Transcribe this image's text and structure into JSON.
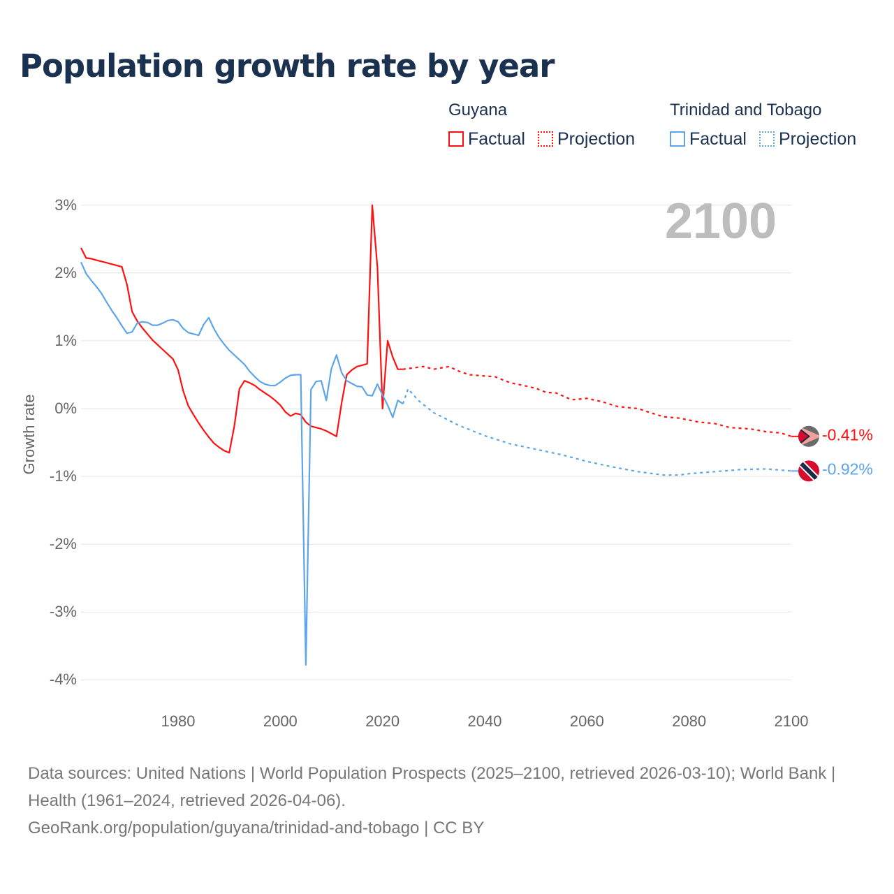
{
  "title": "Population growth rate by year",
  "legend": {
    "groups": [
      {
        "name": "Guyana",
        "factual": "Factual",
        "projection": "Projection",
        "color": "#ff1010"
      },
      {
        "name": "Trinidad and Tobago",
        "factual": "Factual",
        "projection": "Projection",
        "color": "#5da5e8"
      }
    ]
  },
  "current_year": "2100",
  "end_labels": {
    "guyana": "-0.41%",
    "tt": "-0.92%"
  },
  "footer": {
    "line1": "Data sources: United Nations | World Population Prospects (2025–2100, retrieved 2026-03-10); World Bank | Health (1961–2024, retrieved 2026-04-06).",
    "line2": "GeoRank.org/population/guyana/trinidad-and-tobago | CC BY"
  },
  "chart_data": {
    "type": "line",
    "title": "Population growth rate by year",
    "xlabel": "",
    "ylabel": "Growth rate",
    "xlim": [
      1961,
      2100
    ],
    "ylim": [
      -4,
      3
    ],
    "xticks": [
      "1980",
      "2000",
      "2020",
      "2040",
      "2060",
      "2080",
      "2100"
    ],
    "yticks": [
      "3%",
      "2%",
      "1%",
      "0%",
      "-1%",
      "-2%",
      "-3%",
      "-4%"
    ],
    "ytick_values": [
      3,
      2,
      1,
      0,
      -1,
      -2,
      -3,
      -4
    ],
    "xtick_values": [
      1980,
      2000,
      2020,
      2040,
      2060,
      2080,
      2100
    ],
    "grid": true,
    "legend_position": "top-right",
    "series": [
      {
        "name": "Guyana Factual",
        "color": "#ff1010",
        "style": "solid",
        "x": [
          1961,
          1962,
          1963,
          1964,
          1965,
          1966,
          1967,
          1968,
          1969,
          1970,
          1971,
          1972,
          1973,
          1974,
          1975,
          1976,
          1977,
          1978,
          1979,
          1980,
          1981,
          1982,
          1983,
          1984,
          1985,
          1986,
          1987,
          1988,
          1989,
          1990,
          1991,
          1992,
          1993,
          1994,
          1995,
          1996,
          1997,
          1998,
          1999,
          2000,
          2001,
          2002,
          2003,
          2004,
          2005,
          2006,
          2007,
          2008,
          2009,
          2010,
          2011,
          2012,
          2013,
          2014,
          2015,
          2016,
          2017,
          2018,
          2019,
          2020,
          2021,
          2022,
          2023,
          2024
        ],
        "y": [
          2.37,
          2.22,
          2.21,
          2.19,
          2.17,
          2.15,
          2.13,
          2.11,
          2.09,
          1.83,
          1.43,
          1.29,
          1.19,
          1.1,
          1.01,
          0.94,
          0.87,
          0.8,
          0.73,
          0.57,
          0.26,
          0.04,
          -0.09,
          -0.21,
          -0.32,
          -0.42,
          -0.51,
          -0.57,
          -0.62,
          -0.65,
          -0.26,
          0.29,
          0.41,
          0.38,
          0.34,
          0.28,
          0.23,
          0.18,
          0.12,
          0.05,
          -0.05,
          -0.11,
          -0.07,
          -0.09,
          -0.2,
          -0.26,
          -0.28,
          -0.3,
          -0.33,
          -0.37,
          -0.41,
          0.08,
          0.5,
          0.57,
          0.62,
          0.64,
          0.66,
          3.0,
          2.08,
          0.0,
          1.0,
          0.76,
          0.58,
          0.58
        ]
      },
      {
        "name": "Guyana Projection",
        "color": "#ff1010",
        "style": "dotted",
        "x": [
          2024,
          2025,
          2028,
          2030,
          2033,
          2035,
          2037,
          2040,
          2042,
          2045,
          2047,
          2050,
          2052,
          2054,
          2057,
          2060,
          2063,
          2066,
          2070,
          2072,
          2075,
          2078,
          2082,
          2085,
          2088,
          2092,
          2095,
          2098,
          2100
        ],
        "y": [
          0.58,
          0.59,
          0.62,
          0.58,
          0.62,
          0.55,
          0.5,
          0.48,
          0.47,
          0.38,
          0.35,
          0.3,
          0.24,
          0.23,
          0.13,
          0.15,
          0.1,
          0.03,
          0.0,
          -0.05,
          -0.12,
          -0.14,
          -0.2,
          -0.22,
          -0.28,
          -0.3,
          -0.34,
          -0.36,
          -0.41
        ]
      },
      {
        "name": "Trinidad and Tobago Factual",
        "color": "#5da5e8",
        "style": "solid",
        "x": [
          1961,
          1962,
          1963,
          1964,
          1965,
          1966,
          1967,
          1968,
          1969,
          1970,
          1971,
          1972,
          1973,
          1974,
          1975,
          1976,
          1977,
          1978,
          1979,
          1980,
          1981,
          1982,
          1983,
          1984,
          1985,
          1986,
          1987,
          1988,
          1989,
          1990,
          1991,
          1992,
          1993,
          1994,
          1995,
          1996,
          1997,
          1998,
          1999,
          2000,
          2001,
          2002,
          2003,
          2004,
          2005,
          2006,
          2007,
          2008,
          2009,
          2010,
          2011,
          2012,
          2013,
          2014,
          2015,
          2016,
          2017,
          2018,
          2019,
          2020,
          2021,
          2022,
          2023,
          2024
        ],
        "y": [
          2.16,
          1.99,
          1.89,
          1.8,
          1.7,
          1.57,
          1.45,
          1.34,
          1.22,
          1.11,
          1.13,
          1.26,
          1.28,
          1.27,
          1.23,
          1.23,
          1.26,
          1.3,
          1.31,
          1.28,
          1.18,
          1.12,
          1.1,
          1.08,
          1.24,
          1.34,
          1.18,
          1.05,
          0.95,
          0.86,
          0.79,
          0.72,
          0.65,
          0.55,
          0.47,
          0.4,
          0.36,
          0.34,
          0.34,
          0.39,
          0.45,
          0.49,
          0.5,
          0.5,
          -3.78,
          0.28,
          0.4,
          0.41,
          0.12,
          0.59,
          0.79,
          0.53,
          0.41,
          0.37,
          0.33,
          0.32,
          0.2,
          0.19,
          0.36,
          0.2,
          0.05,
          -0.13,
          0.12,
          0.07
        ]
      },
      {
        "name": "Trinidad and Tobago Projection",
        "color": "#5da5e8",
        "style": "dotted",
        "x": [
          2024,
          2025,
          2027,
          2030,
          2035,
          2040,
          2045,
          2050,
          2055,
          2060,
          2065,
          2070,
          2075,
          2078,
          2080,
          2085,
          2090,
          2095,
          2100
        ],
        "y": [
          0.07,
          0.29,
          0.12,
          -0.06,
          -0.25,
          -0.4,
          -0.52,
          -0.6,
          -0.68,
          -0.78,
          -0.86,
          -0.93,
          -0.98,
          -0.98,
          -0.96,
          -0.93,
          -0.9,
          -0.89,
          -0.92
        ]
      }
    ]
  }
}
